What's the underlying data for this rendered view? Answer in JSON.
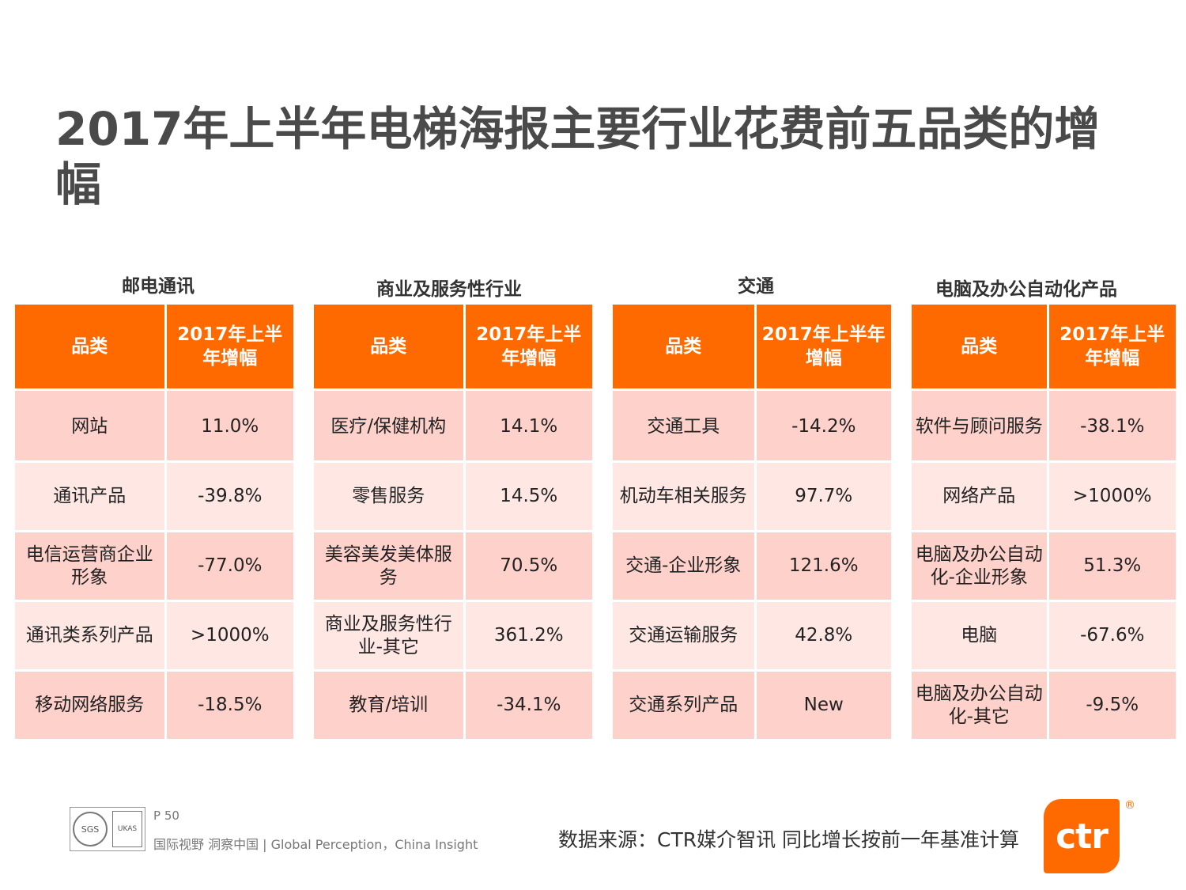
{
  "title": "2017年上半年电梯海报主要行业花费前五品类的增幅",
  "header_category": "品类",
  "sections": [
    {
      "name": "邮电通讯",
      "growth_header": "2017年上半年增幅",
      "rows": [
        {
          "category": "网站",
          "growth": "11.0%"
        },
        {
          "category": "通讯产品",
          "growth": "-39.8%"
        },
        {
          "category": "电信运营商企业形象",
          "growth": "-77.0%"
        },
        {
          "category": "通讯类系列产品",
          "growth": ">1000%"
        },
        {
          "category": "移动网络服务",
          "growth": "-18.5%"
        }
      ]
    },
    {
      "name": "商业及服务性行业",
      "growth_header": "2017年上半年增幅",
      "rows": [
        {
          "category": "医疗/保健机构",
          "growth": "14.1%"
        },
        {
          "category": "零售服务",
          "growth": "14.5%"
        },
        {
          "category": "美容美发美体服务",
          "growth": "70.5%"
        },
        {
          "category": "商业及服务性行业-其它",
          "growth": "361.2%"
        },
        {
          "category": "教育/培训",
          "growth": "-34.1%"
        }
      ]
    },
    {
      "name": "交通",
      "growth_header": "2017年上半年增幅",
      "rows": [
        {
          "category": "交通工具",
          "growth": "-14.2%"
        },
        {
          "category": "机动车相关服务",
          "growth": "97.7%"
        },
        {
          "category": "交通-企业形象",
          "growth": "121.6%"
        },
        {
          "category": "交通运输服务",
          "growth": "42.8%"
        },
        {
          "category": "交通系列产品",
          "growth": "New"
        }
      ]
    },
    {
      "name": "电脑及办公自动化产品",
      "growth_header": "2017年上半年增幅",
      "rows": [
        {
          "category": "软件与顾问服务",
          "growth": "-38.1%"
        },
        {
          "category": "网络产品",
          "growth": ">1000%"
        },
        {
          "category": "电脑及办公自动化-企业形象",
          "growth": "51.3%"
        },
        {
          "category": "电脑",
          "growth": "-67.6%"
        },
        {
          "category": "电脑及办公自动化-其它",
          "growth": "-9.5%"
        }
      ]
    }
  ],
  "footer": {
    "page": "P 50",
    "tagline": "国际视野  洞察中国 |  Global Perception，China Insight",
    "source": "数据来源：CTR媒介智讯    同比增长按前一年基准计算",
    "logo_text": "ctr",
    "cert_text_1": "SGS",
    "cert_text_2": "UKAS"
  },
  "colors": {
    "header_orange": "#ff6a00",
    "row_dark": "#ffd1cb",
    "row_light": "#ffe7e4"
  }
}
